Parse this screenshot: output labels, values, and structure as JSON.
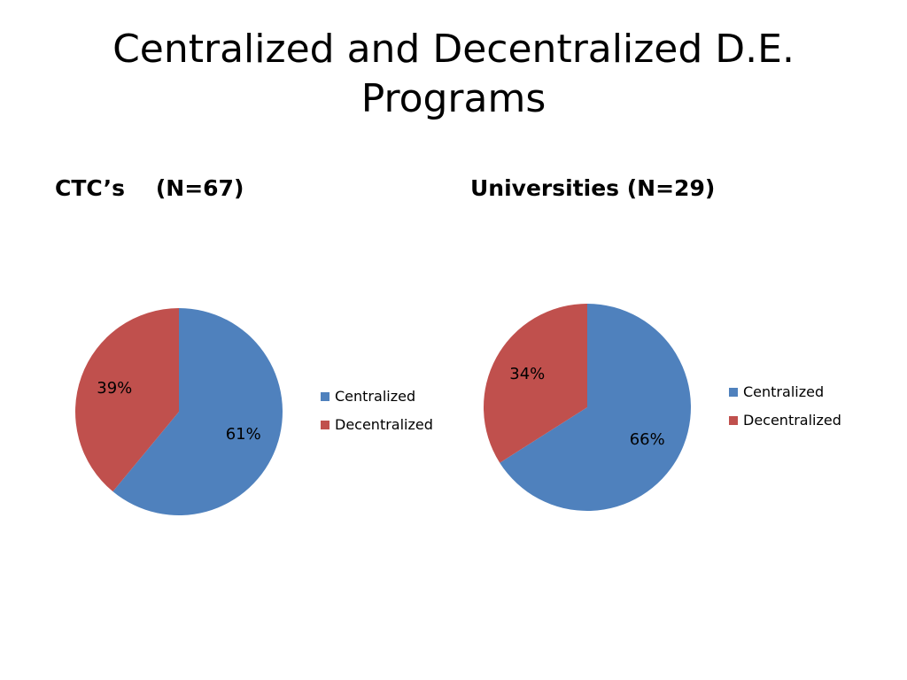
{
  "slide": {
    "title": "Centralized and Decentralized D.E. Programs"
  },
  "colors": {
    "centralized": "#4f81bd",
    "decentralized": "#c0504d",
    "background": "#ffffff",
    "text": "#000000"
  },
  "chart_data": [
    {
      "type": "pie",
      "title": "CTC’s    (N=67)",
      "categories": [
        "Centralized",
        "Decentralized"
      ],
      "values": [
        61,
        39
      ],
      "labels": [
        "61%",
        "39%"
      ],
      "units": "percent",
      "legend": {
        "placement": "right",
        "entries": [
          "Centralized",
          "Decentralized"
        ]
      }
    },
    {
      "type": "pie",
      "title": "Universities (N=29)",
      "categories": [
        "Centralized",
        "Decentralized"
      ],
      "values": [
        66,
        34
      ],
      "labels": [
        "66%",
        "34%"
      ],
      "units": "percent",
      "legend": {
        "placement": "right",
        "entries": [
          "Centralized",
          "Decentralized"
        ]
      }
    }
  ]
}
